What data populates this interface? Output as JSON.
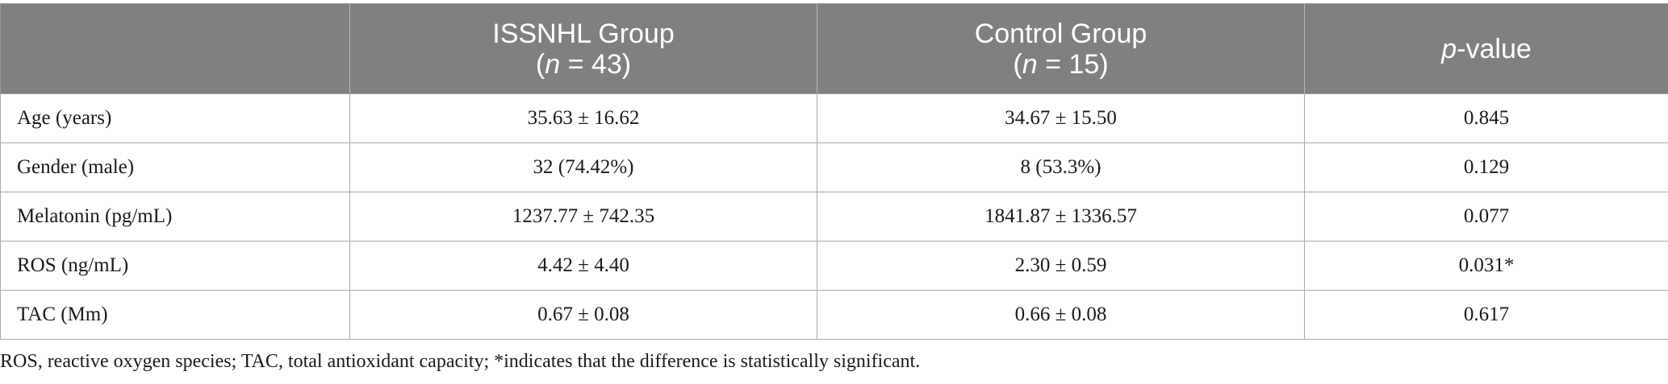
{
  "table": {
    "headers": [
      {
        "line1": "",
        "line2_italic": "",
        "line2_rest": ""
      },
      {
        "line1": "ISSNHL Group",
        "line2_open": "(",
        "line2_italic": "n",
        "line2_rest": " = 43)"
      },
      {
        "line1": "Control Group",
        "line2_open": "(",
        "line2_italic": "n",
        "line2_rest": " = 15)"
      },
      {
        "line1_italic": "p",
        "line1_rest": "-value"
      }
    ],
    "rows": [
      {
        "label": "Age (years)",
        "issnhl": "35.63 ± 16.62",
        "control": "34.67 ± 15.50",
        "p": "0.845"
      },
      {
        "label": "Gender (male)",
        "issnhl": "32 (74.42%)",
        "control": "8 (53.3%)",
        "p": "0.129"
      },
      {
        "label": "Melatonin (pg/mL)",
        "issnhl": "1237.77 ± 742.35",
        "control": "1841.87 ± 1336.57",
        "p": "0.077"
      },
      {
        "label": "ROS (ng/mL)",
        "issnhl": "4.42 ± 4.40",
        "control": "2.30 ± 0.59",
        "p": "0.031*"
      },
      {
        "label": "TAC (Mm)",
        "issnhl": "0.67 ± 0.08",
        "control": "0.66 ± 0.08",
        "p": "0.617"
      }
    ]
  },
  "footnote": "ROS, reactive oxygen species; TAC, total antioxidant capacity; *indicates that the difference is statistically significant.",
  "colors": {
    "header_bg": "#808080",
    "header_text": "#ffffff",
    "grid": "#a9a9a9"
  }
}
